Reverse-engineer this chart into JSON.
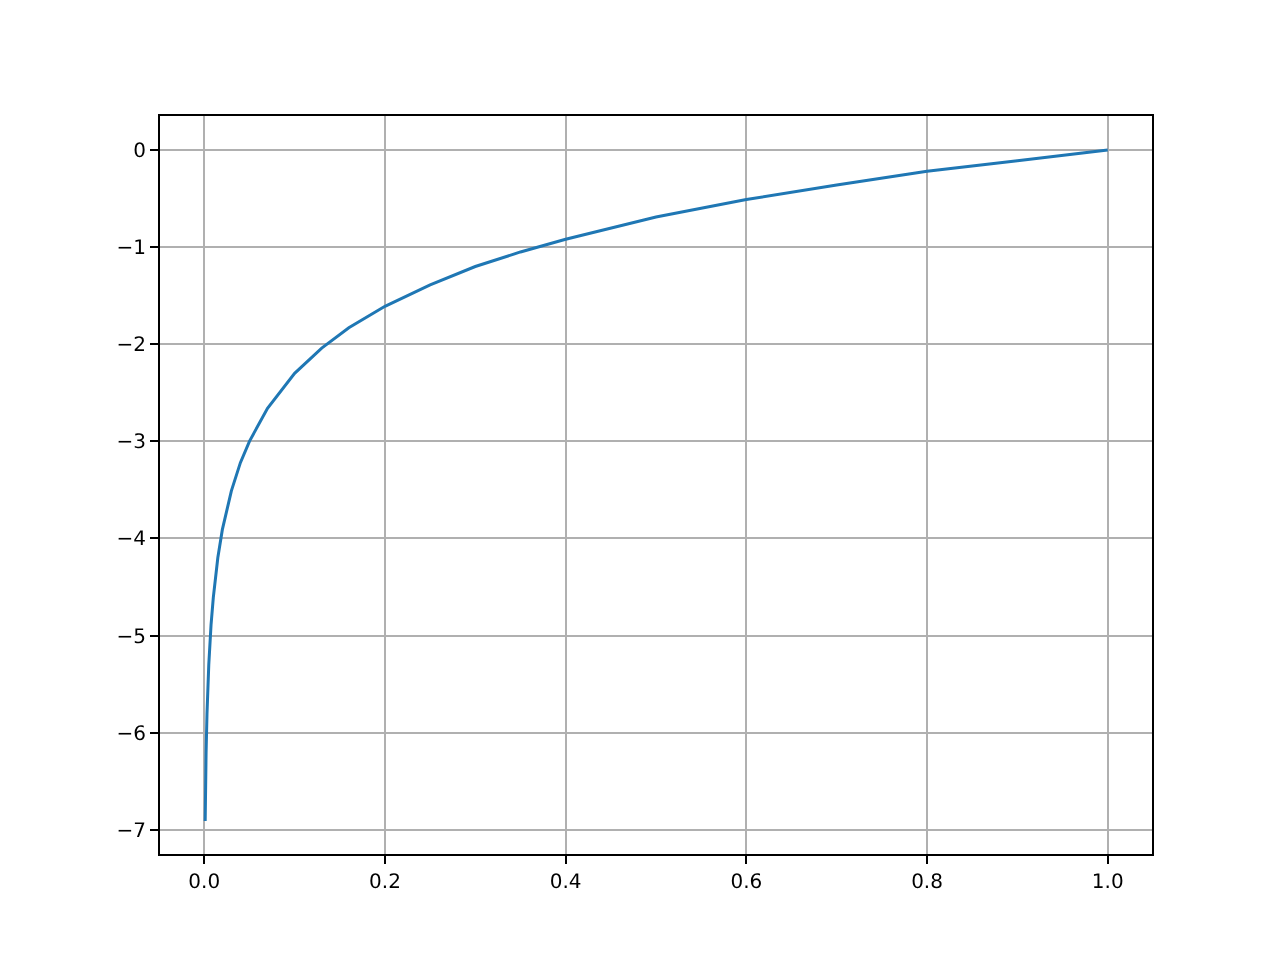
{
  "chart_data": {
    "type": "line",
    "x": [
      0.001,
      0.002,
      0.003,
      0.005,
      0.0075,
      0.01,
      0.015,
      0.02,
      0.03,
      0.04,
      0.05,
      0.07,
      0.1,
      0.13,
      0.16,
      0.2,
      0.25,
      0.3,
      0.35,
      0.4,
      0.5,
      0.6,
      0.7,
      0.8,
      0.9,
      1.0
    ],
    "series": [
      {
        "color": "#1f77b4",
        "values": [
          -6.91,
          -6.21,
          -5.81,
          -5.3,
          -4.89,
          -4.61,
          -4.2,
          -3.91,
          -3.51,
          -3.22,
          -3.0,
          -2.66,
          -2.3,
          -2.04,
          -1.83,
          -1.61,
          -1.39,
          -1.2,
          -1.05,
          -0.92,
          -0.69,
          -0.51,
          -0.36,
          -0.22,
          -0.11,
          0.0
        ]
      }
    ],
    "xlim": [
      -0.049,
      1.049
    ],
    "ylim": [
      -7.25,
      0.35
    ],
    "xticks": [
      {
        "value": 0,
        "label": "0.0"
      },
      {
        "value": 0.2,
        "label": "0.2"
      },
      {
        "value": 0.4,
        "label": "0.4"
      },
      {
        "value": 0.6,
        "label": "0.6"
      },
      {
        "value": 0.8,
        "label": "0.8"
      },
      {
        "value": 1.0,
        "label": "1.0"
      }
    ],
    "yticks": [
      {
        "value": -7,
        "label": "−7"
      },
      {
        "value": -6,
        "label": "−6"
      },
      {
        "value": -5,
        "label": "−5"
      },
      {
        "value": -4,
        "label": "−4"
      },
      {
        "value": -3,
        "label": "−3"
      },
      {
        "value": -2,
        "label": "−2"
      },
      {
        "value": -1,
        "label": "−1"
      },
      {
        "value": 0,
        "label": "0"
      }
    ],
    "grid": true,
    "marker": "none",
    "line_style": "solid"
  }
}
